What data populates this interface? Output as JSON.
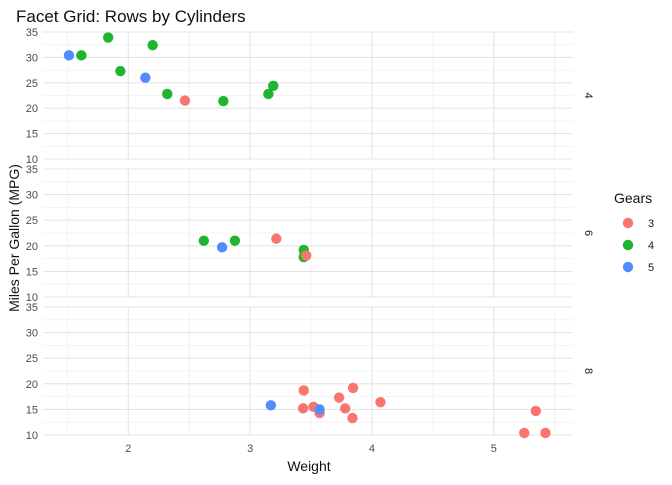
{
  "chart_data": {
    "type": "scatter",
    "title": "Facet Grid: Rows by Cylinders",
    "xlabel": "Weight",
    "ylabel": "Miles Per Gallon (MPG)",
    "xlim": [
      1.3,
      5.65
    ],
    "ylim": [
      10,
      35
    ],
    "x_ticks": [
      2,
      3,
      4,
      5
    ],
    "y_ticks": [
      10,
      15,
      20,
      25,
      30,
      35
    ],
    "grid": true,
    "legend": {
      "title": "Gears",
      "position": "right",
      "items": [
        {
          "label": "3",
          "color": "#F8766D"
        },
        {
          "label": "4",
          "color": "#1EB52F"
        },
        {
          "label": "5",
          "color": "#528BFF"
        }
      ]
    },
    "facets": [
      {
        "label": "4",
        "points": [
          {
            "x": 1.513,
            "y": 30.4,
            "gear": "5"
          },
          {
            "x": 1.615,
            "y": 30.4,
            "gear": "4"
          },
          {
            "x": 1.835,
            "y": 33.9,
            "gear": "4"
          },
          {
            "x": 1.935,
            "y": 27.3,
            "gear": "4"
          },
          {
            "x": 2.14,
            "y": 26.0,
            "gear": "5"
          },
          {
            "x": 2.2,
            "y": 32.4,
            "gear": "4"
          },
          {
            "x": 2.32,
            "y": 22.8,
            "gear": "4"
          },
          {
            "x": 2.465,
            "y": 21.5,
            "gear": "3"
          },
          {
            "x": 2.78,
            "y": 21.4,
            "gear": "4"
          },
          {
            "x": 3.15,
            "y": 22.8,
            "gear": "4"
          },
          {
            "x": 3.19,
            "y": 24.4,
            "gear": "4"
          }
        ]
      },
      {
        "label": "6",
        "points": [
          {
            "x": 2.62,
            "y": 21.0,
            "gear": "4"
          },
          {
            "x": 2.77,
            "y": 19.7,
            "gear": "5"
          },
          {
            "x": 2.875,
            "y": 21.0,
            "gear": "4"
          },
          {
            "x": 3.215,
            "y": 21.4,
            "gear": "3"
          },
          {
            "x": 3.44,
            "y": 19.2,
            "gear": "4"
          },
          {
            "x": 3.44,
            "y": 17.8,
            "gear": "4"
          },
          {
            "x": 3.46,
            "y": 18.1,
            "gear": "3"
          }
        ]
      },
      {
        "label": "8",
        "points": [
          {
            "x": 3.17,
            "y": 15.8,
            "gear": "5"
          },
          {
            "x": 3.435,
            "y": 15.2,
            "gear": "3"
          },
          {
            "x": 3.44,
            "y": 18.7,
            "gear": "3"
          },
          {
            "x": 3.52,
            "y": 15.5,
            "gear": "3"
          },
          {
            "x": 3.57,
            "y": 14.3,
            "gear": "3"
          },
          {
            "x": 3.57,
            "y": 15.0,
            "gear": "5"
          },
          {
            "x": 3.73,
            "y": 17.3,
            "gear": "3"
          },
          {
            "x": 3.78,
            "y": 15.2,
            "gear": "3"
          },
          {
            "x": 3.84,
            "y": 13.3,
            "gear": "3"
          },
          {
            "x": 3.845,
            "y": 19.2,
            "gear": "3"
          },
          {
            "x": 4.07,
            "y": 16.4,
            "gear": "3"
          },
          {
            "x": 5.25,
            "y": 10.4,
            "gear": "3"
          },
          {
            "x": 5.345,
            "y": 14.7,
            "gear": "3"
          },
          {
            "x": 5.424,
            "y": 10.4,
            "gear": "3"
          }
        ]
      }
    ]
  }
}
